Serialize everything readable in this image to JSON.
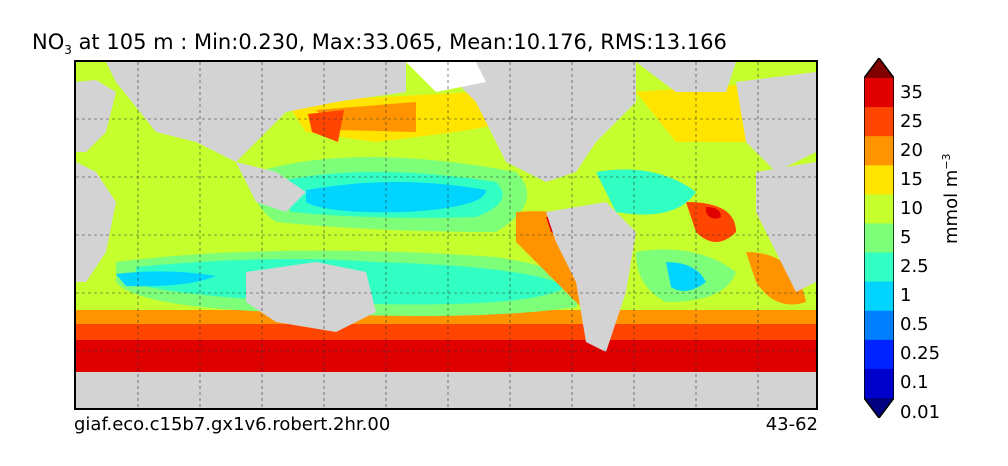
{
  "title": {
    "var": "NO",
    "sub": "3",
    "rest": " at 105 m : Min:0.230, Max:33.065, Mean:10.176, RMS:13.166"
  },
  "footer": {
    "left": "giaf.eco.c15b7.gx1v6.robert.2hr.00",
    "right": "43-62"
  },
  "colorbar": {
    "units_main": "mmol m",
    "units_exp": "−3",
    "levels": [
      "35",
      "25",
      "20",
      "15",
      "10",
      "5",
      "2.5",
      "1",
      "0.5",
      "0.25",
      "0.1",
      "0.01"
    ],
    "colors": [
      "#800000",
      "#e00000",
      "#ff4500",
      "#ff9400",
      "#ffe400",
      "#c6ff2e",
      "#7dff7a",
      "#31ffc4",
      "#00d4ff",
      "#0080ff",
      "#0024ff",
      "#0000cc",
      "#000080"
    ]
  },
  "map_colors": {
    "land": "#d3d3d3",
    "ice": "#ffffff",
    "polar": "#e00000",
    "subpolar": "#ff9400",
    "temperate": "#c6ff2e",
    "gyre": "#31ffc4",
    "gyre_core": "#00d4ff",
    "upwelling": "#ff4500"
  }
}
